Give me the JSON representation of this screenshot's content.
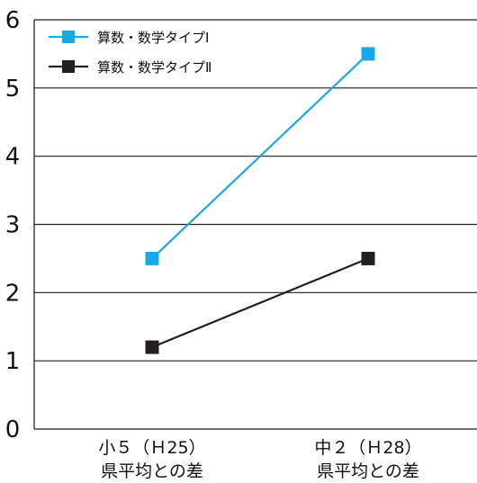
{
  "chart_data": {
    "type": "line",
    "categories": [
      [
        "小５（Ｈ25）",
        "県平均との差"
      ],
      [
        "中２（Ｈ28）",
        "県平均との差"
      ]
    ],
    "series": [
      {
        "name": "算数・数学タイプⅠ",
        "values": [
          2.5,
          5.5
        ],
        "color": "#1aa7e6",
        "marker": "square"
      },
      {
        "name": "算数・数学タイプⅡ",
        "values": [
          1.2,
          2.5
        ],
        "color": "#231f20",
        "marker": "square"
      }
    ],
    "ylim": [
      0,
      6
    ],
    "yticks": [
      0,
      1,
      2,
      3,
      4,
      5,
      6
    ],
    "grid": true,
    "legend": "top-left",
    "xlabel": "",
    "ylabel": "",
    "title": ""
  }
}
